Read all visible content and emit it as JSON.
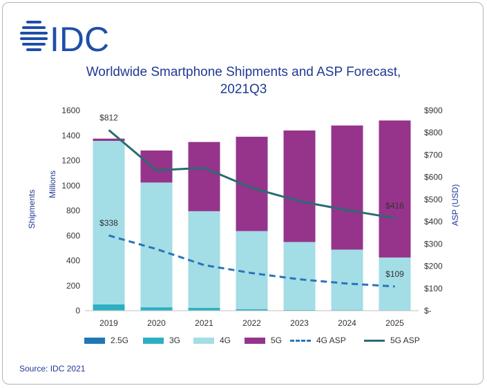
{
  "brand": {
    "name": "IDC",
    "color": "#1e4fa8"
  },
  "title_line1": "Worldwide Smartphone Shipments and ASP Forecast,",
  "title_line2": "2021Q3",
  "source": "Source: IDC 2021",
  "chart_data": {
    "type": "bar",
    "stacked": true,
    "categories": [
      "2019",
      "2020",
      "2021",
      "2022",
      "2023",
      "2024",
      "2025"
    ],
    "series": [
      {
        "name": "2.5G",
        "kind": "bar",
        "color": "#1f77b4",
        "values": [
          3,
          2,
          2,
          1,
          1,
          1,
          1
        ]
      },
      {
        "name": "3G",
        "kind": "bar",
        "color": "#2bb0c2",
        "values": [
          47,
          25,
          20,
          10,
          5,
          4,
          3
        ]
      },
      {
        "name": "4G",
        "kind": "bar",
        "color": "#a3dde6",
        "values": [
          1307,
          997,
          773,
          625,
          543,
          483,
          421
        ]
      },
      {
        "name": "5G",
        "kind": "bar",
        "color": "#96348c",
        "values": [
          18,
          256,
          553,
          754,
          891,
          992,
          1095
        ]
      },
      {
        "name": "4G ASP",
        "kind": "line",
        "axis": "right",
        "dashed": true,
        "color": "#2a73b8",
        "values": [
          338,
          277,
          205,
          169,
          141,
          122,
          109
        ]
      },
      {
        "name": "5G ASP",
        "kind": "line",
        "axis": "right",
        "dashed": false,
        "color": "#2b6b72",
        "values": [
          812,
          631,
          642,
          552,
          492,
          452,
          416
        ]
      }
    ],
    "annotations": [
      {
        "series": "5G ASP",
        "index": 0,
        "text": "$812"
      },
      {
        "series": "4G ASP",
        "index": 0,
        "text": "$338"
      },
      {
        "series": "5G ASP",
        "index": 6,
        "text": "$416"
      },
      {
        "series": "4G ASP",
        "index": 6,
        "text": "$109"
      }
    ],
    "y_left": {
      "label": "Shipments",
      "sublabel": "Millions",
      "ylim": [
        0,
        1600
      ],
      "ticks": [
        "0",
        "200",
        "400",
        "600",
        "800",
        "1000",
        "1200",
        "1400",
        "1600"
      ]
    },
    "y_right": {
      "label": "ASP (USD)",
      "ylim": [
        0,
        900
      ],
      "ticks": [
        "$-",
        "$100",
        "$200",
        "$300",
        "$400",
        "$500",
        "$600",
        "$700",
        "$800",
        "$900"
      ]
    },
    "grid": false,
    "legend": "bottom"
  }
}
